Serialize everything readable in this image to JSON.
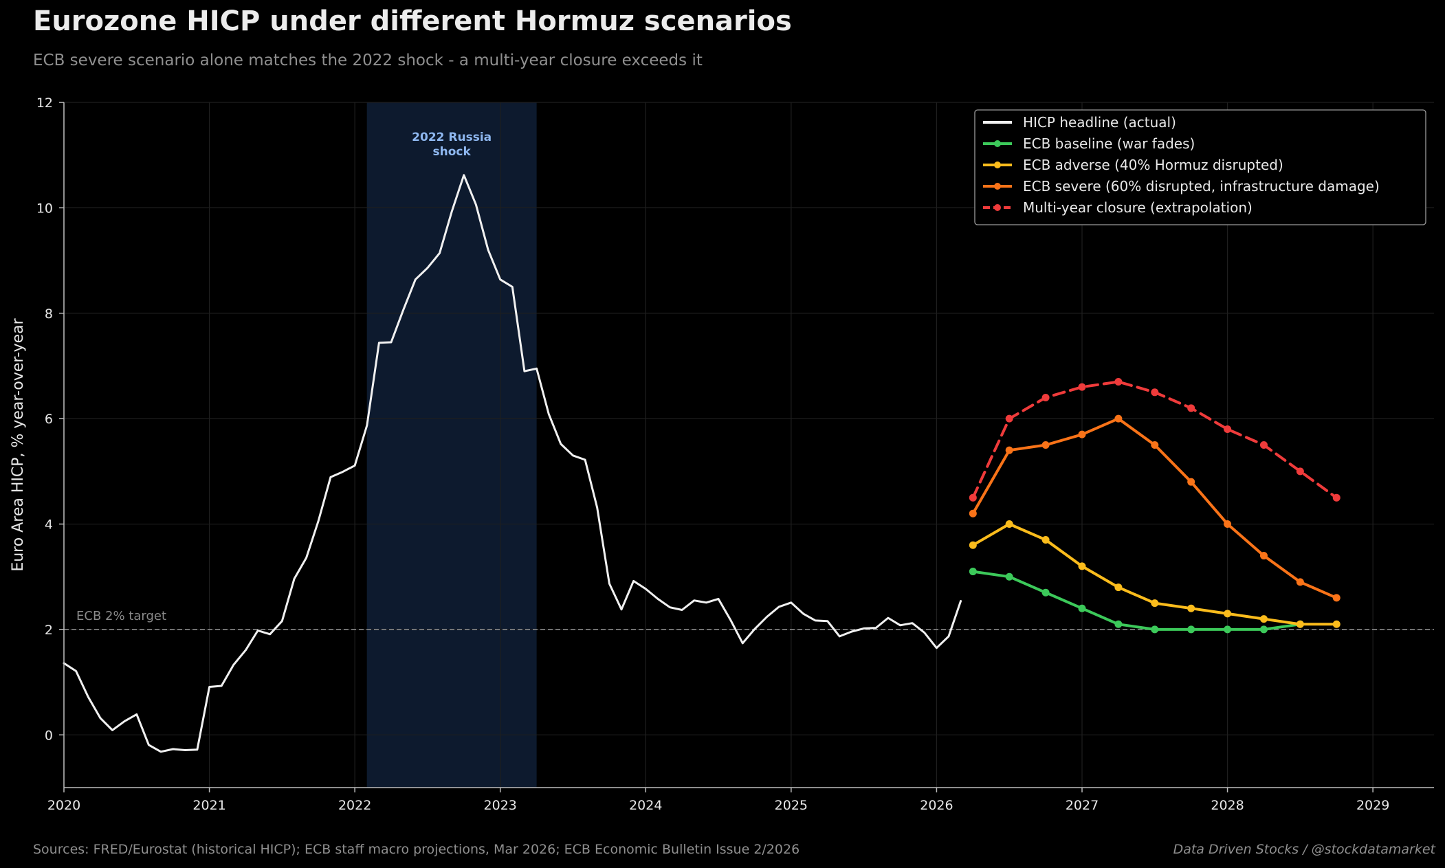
{
  "header": {
    "title": "Eurozone HICP under different Hormuz scenarios",
    "subtitle": "ECB severe scenario alone matches the 2022 shock - a multi-year closure exceeds it"
  },
  "footer": {
    "sources": "Sources: FRED/Eurostat (historical HICP); ECB staff macro projections, Mar 2026; ECB Economic Bulletin Issue 2/2026",
    "credit": "Data Driven Stocks  /  @stockdatamarket"
  },
  "chart_data": {
    "type": "line",
    "ylabel": "Euro Area HICP, % year-over-year",
    "xlabel": "",
    "xlim": [
      2020.0,
      2029.42
    ],
    "ylim": [
      -1,
      12
    ],
    "x_ticks": [
      2020,
      2021,
      2022,
      2023,
      2024,
      2025,
      2026,
      2027,
      2028,
      2029
    ],
    "y_ticks": [
      0,
      2,
      4,
      6,
      8,
      10,
      12
    ],
    "grid": true,
    "legend_position": "top-right",
    "target_line": {
      "value": 2,
      "label": "ECB 2% target",
      "color": "#8a8a8a"
    },
    "shaded_region": {
      "x_start": 2022.083,
      "x_end": 2023.25,
      "label_line1": "2022 Russia",
      "label_line2": "shock",
      "color": "#0d1a2e",
      "label_color": "#8fb8f0"
    },
    "series": [
      {
        "name": "HICP headline (actual)",
        "color": "#f0f0f0",
        "style": "solid",
        "markers": false,
        "x_start": 2020.0,
        "x_step": 0.08333,
        "values": [
          1.36,
          1.21,
          0.72,
          0.32,
          0.09,
          0.26,
          0.39,
          -0.19,
          -0.32,
          -0.27,
          -0.29,
          -0.28,
          0.91,
          0.93,
          1.33,
          1.61,
          1.98,
          1.91,
          2.16,
          2.96,
          3.36,
          4.06,
          4.89,
          4.99,
          5.11,
          5.87,
          7.44,
          7.45,
          8.06,
          8.64,
          8.86,
          9.14,
          9.93,
          10.62,
          10.06,
          9.2,
          8.64,
          8.5,
          6.9,
          6.95,
          6.09,
          5.52,
          5.3,
          5.22,
          4.31,
          2.87,
          2.38,
          2.92,
          2.77,
          2.58,
          2.42,
          2.37,
          2.55,
          2.51,
          2.58,
          2.18,
          1.74,
          2.01,
          2.24,
          2.43,
          2.51,
          2.3,
          2.17,
          2.16,
          1.87,
          1.96,
          2.02,
          2.03,
          2.22,
          2.08,
          2.12,
          1.94,
          1.65,
          1.87,
          2.54
        ]
      },
      {
        "name": "ECB baseline (war fades)",
        "color": "#3cc95a",
        "style": "solid",
        "markers": true,
        "x": [
          2026.25,
          2026.5,
          2026.75,
          2027.0,
          2027.25,
          2027.5,
          2027.75,
          2028.0,
          2028.25,
          2028.5
        ],
        "values": [
          3.1,
          3.0,
          2.7,
          2.4,
          2.1,
          2.0,
          2.0,
          2.0,
          2.0,
          2.1
        ]
      },
      {
        "name": "ECB adverse (40% Hormuz disrupted)",
        "color": "#fbbc1c",
        "style": "solid",
        "markers": true,
        "x": [
          2026.25,
          2026.5,
          2026.75,
          2027.0,
          2027.25,
          2027.5,
          2027.75,
          2028.0,
          2028.25,
          2028.5,
          2028.75
        ],
        "values": [
          3.6,
          4.0,
          3.7,
          3.2,
          2.8,
          2.5,
          2.4,
          2.3,
          2.2,
          2.1,
          2.1
        ]
      },
      {
        "name": "ECB severe (60% disrupted, infrastructure damage)",
        "color": "#f97318",
        "style": "solid",
        "markers": true,
        "x": [
          2026.25,
          2026.5,
          2026.75,
          2027.0,
          2027.25,
          2027.5,
          2027.75,
          2028.0,
          2028.25,
          2028.5,
          2028.75
        ],
        "values": [
          4.2,
          5.4,
          5.5,
          5.7,
          6.0,
          5.5,
          4.8,
          4.0,
          3.4,
          2.9,
          2.6
        ]
      },
      {
        "name": "Multi-year closure (extrapolation)",
        "color": "#ef3b3b",
        "style": "dashed",
        "markers": true,
        "x": [
          2026.25,
          2026.5,
          2026.75,
          2027.0,
          2027.25,
          2027.5,
          2027.75,
          2028.0,
          2028.25,
          2028.5,
          2028.75
        ],
        "values": [
          4.5,
          6.0,
          6.4,
          6.6,
          6.7,
          6.5,
          6.2,
          5.8,
          5.5,
          5.0,
          4.5
        ]
      }
    ]
  }
}
